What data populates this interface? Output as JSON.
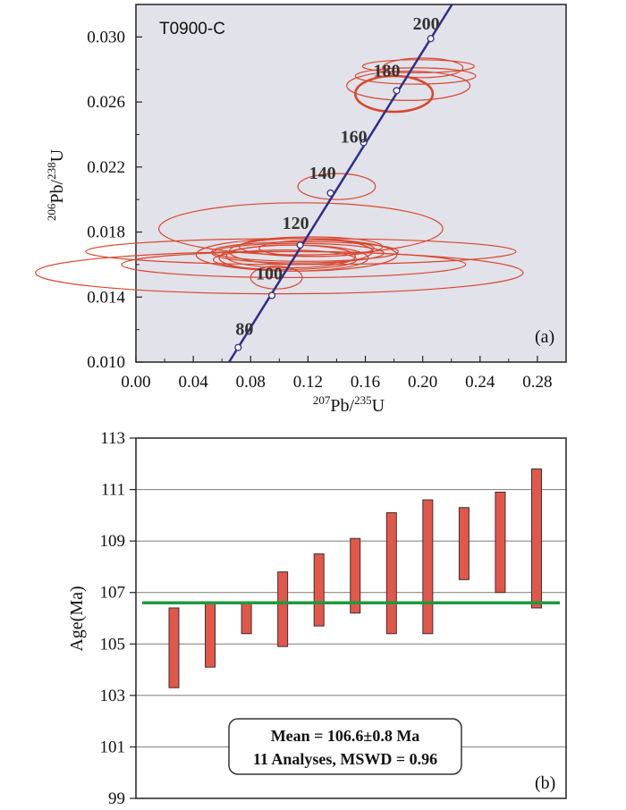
{
  "chart_data": [
    {
      "type": "scatter",
      "subtype": "concordia",
      "sample_label": "T0900-C",
      "panel_label": "(a)",
      "xlabel": {
        "sup1": "207",
        "base1": "Pb/",
        "sup2": "235",
        "base2": "U"
      },
      "ylabel": {
        "sup1": "206",
        "base1": "Pb/",
        "sup2": "238",
        "base2": "U"
      },
      "xlim": [
        0.0,
        0.3
      ],
      "ylim": [
        0.01,
        0.032
      ],
      "xticks": [
        "0.00",
        "0.04",
        "0.08",
        "0.12",
        "0.16",
        "0.20",
        "0.24",
        "0.28"
      ],
      "yticks": [
        "0.010",
        "0.014",
        "0.018",
        "0.022",
        "0.026",
        "0.030"
      ],
      "concordia_ages": [
        {
          "age": "80",
          "x": 0.0713,
          "y": 0.0109
        },
        {
          "age": "100",
          "x": 0.0948,
          "y": 0.0141
        },
        {
          "age": "120",
          "x": 0.1145,
          "y": 0.0172
        },
        {
          "age": "140",
          "x": 0.1357,
          "y": 0.0204
        },
        {
          "age": "160",
          "x": 0.1588,
          "y": 0.0235
        },
        {
          "age": "180",
          "x": 0.1818,
          "y": 0.0267
        },
        {
          "age": "200",
          "x": 0.2056,
          "y": 0.0299
        }
      ],
      "error_ellipses": [
        {
          "cx": 0.197,
          "cy": 0.0282,
          "rx": 0.039,
          "ry": 0.0004
        },
        {
          "cx": 0.2,
          "cy": 0.0281,
          "rx": 0.028,
          "ry": 0.0006
        },
        {
          "cx": 0.195,
          "cy": 0.0276,
          "rx": 0.042,
          "ry": 0.0005
        },
        {
          "cx": 0.19,
          "cy": 0.027,
          "rx": 0.043,
          "ry": 0.0009
        },
        {
          "cx": 0.18,
          "cy": 0.0265,
          "rx": 0.027,
          "ry": 0.0011
        },
        {
          "cx": 0.14,
          "cy": 0.0208,
          "rx": 0.027,
          "ry": 0.0008
        },
        {
          "cx": 0.115,
          "cy": 0.0182,
          "rx": 0.099,
          "ry": 0.0016
        },
        {
          "cx": 0.115,
          "cy": 0.0168,
          "rx": 0.15,
          "ry": 0.0008
        },
        {
          "cx": 0.11,
          "cy": 0.016,
          "rx": 0.12,
          "ry": 0.0008
        },
        {
          "cx": 0.1,
          "cy": 0.0155,
          "rx": 0.17,
          "ry": 0.0013
        },
        {
          "cx": 0.115,
          "cy": 0.0168,
          "rx": 0.05,
          "ry": 0.0008
        },
        {
          "cx": 0.118,
          "cy": 0.0168,
          "rx": 0.065,
          "ry": 0.0006
        },
        {
          "cx": 0.113,
          "cy": 0.0167,
          "rx": 0.06,
          "ry": 0.0006
        },
        {
          "cx": 0.11,
          "cy": 0.0164,
          "rx": 0.052,
          "ry": 0.0008
        },
        {
          "cx": 0.108,
          "cy": 0.0165,
          "rx": 0.045,
          "ry": 0.0007
        },
        {
          "cx": 0.122,
          "cy": 0.0171,
          "rx": 0.05,
          "ry": 0.0006
        },
        {
          "cx": 0.126,
          "cy": 0.017,
          "rx": 0.04,
          "ry": 0.0005
        },
        {
          "cx": 0.104,
          "cy": 0.0163,
          "rx": 0.05,
          "ry": 0.0006
        },
        {
          "cx": 0.112,
          "cy": 0.0166,
          "rx": 0.07,
          "ry": 0.001
        },
        {
          "cx": 0.098,
          "cy": 0.0152,
          "rx": 0.018,
          "ry": 0.0007
        }
      ]
    },
    {
      "type": "bar",
      "subtype": "error-bar",
      "panel_label": "(b)",
      "ylabel": "Age(Ma)",
      "ylim": [
        99,
        113
      ],
      "yticks": [
        "99",
        "101",
        "103",
        "105",
        "107",
        "109",
        "111",
        "113"
      ],
      "mean_age": 106.6,
      "analyses": [
        {
          "low": 103.3,
          "high": 106.4
        },
        {
          "low": 104.1,
          "high": 106.6
        },
        {
          "low": 105.4,
          "high": 106.6
        },
        {
          "low": 104.9,
          "high": 107.8
        },
        {
          "low": 105.7,
          "high": 108.5
        },
        {
          "low": 106.2,
          "high": 109.1
        },
        {
          "low": 105.4,
          "high": 110.1
        },
        {
          "low": 105.4,
          "high": 110.6
        },
        {
          "low": 107.5,
          "high": 110.3
        },
        {
          "low": 107.0,
          "high": 110.9
        },
        {
          "low": 106.4,
          "high": 111.8
        }
      ],
      "summary_line1": "Mean = 106.6±0.8 Ma",
      "summary_line2": "11 Analyses, MSWD = 0.96"
    }
  ]
}
